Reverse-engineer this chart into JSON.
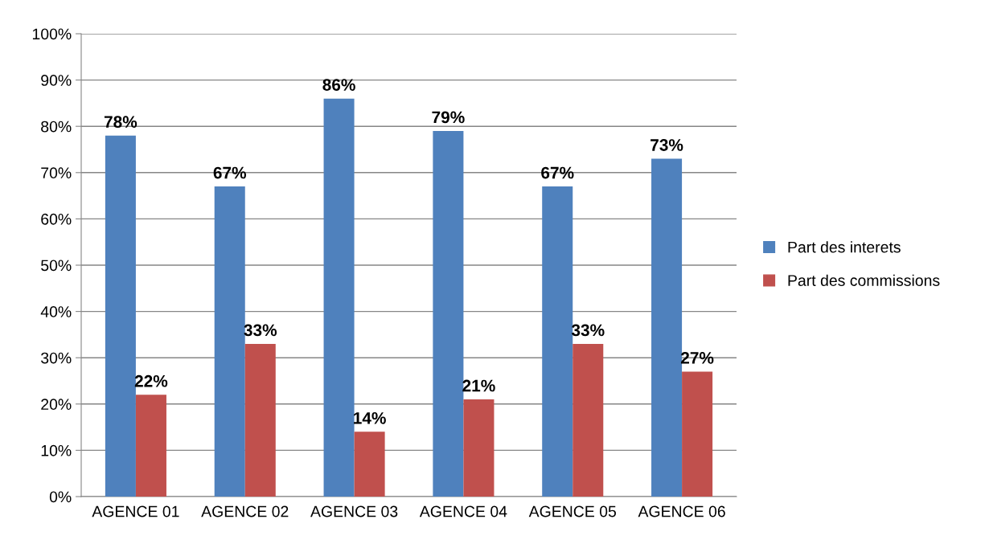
{
  "chart_data": {
    "type": "bar",
    "categories": [
      "AGENCE 01",
      "AGENCE 02",
      "AGENCE 03",
      "AGENCE 04",
      "AGENCE 05",
      "AGENCE 06"
    ],
    "series": [
      {
        "name": "Part des interets",
        "color": "#4f81bd",
        "values": [
          78,
          67,
          86,
          79,
          67,
          73
        ],
        "value_labels": [
          "78%",
          "67%",
          "86%",
          "79%",
          "67%",
          "73%"
        ]
      },
      {
        "name": "Part des commissions",
        "color": "#c0504d",
        "values": [
          22,
          33,
          14,
          21,
          33,
          27
        ],
        "value_labels": [
          "22%",
          "33%",
          "14%",
          "21%",
          "33%",
          "27%"
        ]
      }
    ],
    "ylim": [
      0,
      100
    ],
    "yticks": [
      {
        "value": 0,
        "label": "0%"
      },
      {
        "value": 10,
        "label": "10%"
      },
      {
        "value": 20,
        "label": "20%"
      },
      {
        "value": 30,
        "label": "30%"
      },
      {
        "value": 40,
        "label": "40%"
      },
      {
        "value": 50,
        "label": "50%"
      },
      {
        "value": 60,
        "label": "60%"
      },
      {
        "value": 70,
        "label": "70%"
      },
      {
        "value": 80,
        "label": "80%"
      },
      {
        "value": 90,
        "label": "90%"
      },
      {
        "value": 100,
        "label": "100%"
      }
    ],
    "grid": "y",
    "legend": "right"
  }
}
